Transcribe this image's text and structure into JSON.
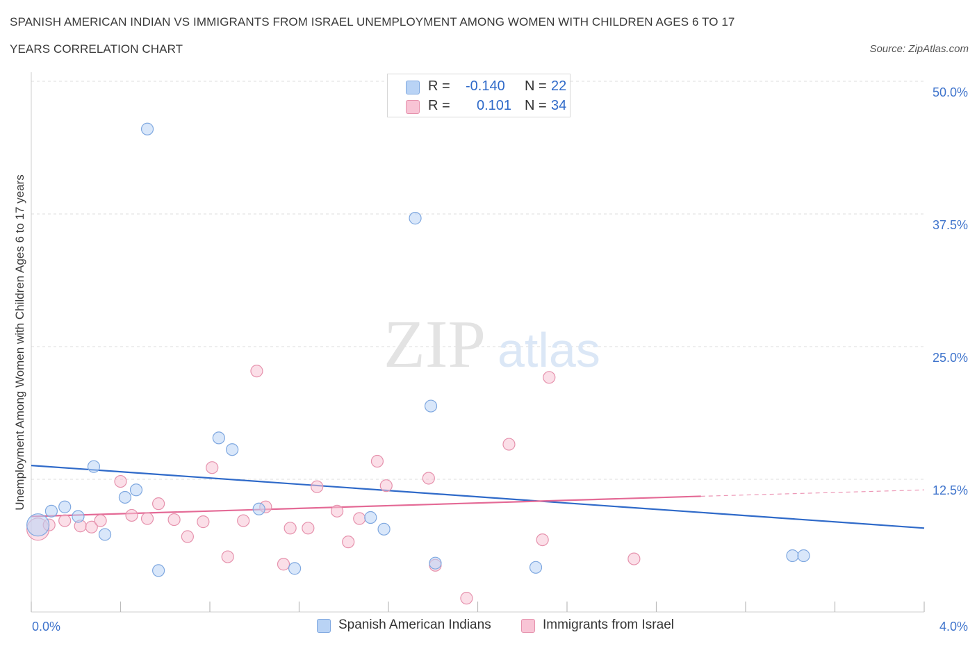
{
  "header": {
    "title_line1": "SPANISH AMERICAN INDIAN VS IMMIGRANTS FROM ISRAEL UNEMPLOYMENT AMONG WOMEN WITH CHILDREN AGES 6 TO 17",
    "title_line2": "YEARS CORRELATION CHART",
    "source": "Source: ZipAtlas.com"
  },
  "legend": {
    "series1": {
      "r_label": "R =",
      "r_value": "-0.140",
      "n_label": "N =",
      "n_value": "22"
    },
    "series2": {
      "r_label": "R =",
      "r_value": "0.101",
      "n_label": "N =",
      "n_value": "34"
    }
  },
  "colors": {
    "blue_fill": "#b9d3f5",
    "blue_stroke": "#7fa8e0",
    "blue_line": "#2f6ac9",
    "pink_fill": "#f8c4d5",
    "pink_stroke": "#e692ad",
    "pink_line": "#e46a96",
    "axis_text": "#3f74cc",
    "grid": "#dcdcdc"
  },
  "watermark": {
    "zip": "ZIP",
    "atlas": "atlas"
  },
  "chart_data": {
    "type": "scatter",
    "title": "Spanish American Indian vs Immigrants from Israel Unemployment among Women with Children Ages 6 to 17 years Correlation Chart",
    "xlabel": "",
    "ylabel": "Unemployment Among Women with Children Ages 6 to 17 years",
    "xlim": [
      0,
      4
    ],
    "ylim": [
      0,
      50
    ],
    "x_tick_labels": [
      "0.0%",
      "4.0%"
    ],
    "y_ticks": [
      12.5,
      25.0,
      37.5,
      50.0
    ],
    "y_tick_labels": [
      "12.5%",
      "25.0%",
      "37.5%",
      "50.0%"
    ],
    "grid": true,
    "legend_position": "bottom",
    "series": [
      {
        "name": "Spanish American Indians",
        "color": "#b9d3f5",
        "points": [
          {
            "x": 0.03,
            "y": 8.2,
            "size": "large"
          },
          {
            "x": 0.09,
            "y": 9.5
          },
          {
            "x": 0.15,
            "y": 9.9
          },
          {
            "x": 0.21,
            "y": 9.0
          },
          {
            "x": 0.28,
            "y": 13.7
          },
          {
            "x": 0.33,
            "y": 7.3
          },
          {
            "x": 0.42,
            "y": 10.8
          },
          {
            "x": 0.47,
            "y": 11.5
          },
          {
            "x": 0.52,
            "y": 45.5
          },
          {
            "x": 0.57,
            "y": 3.9
          },
          {
            "x": 0.84,
            "y": 16.4
          },
          {
            "x": 0.9,
            "y": 15.3
          },
          {
            "x": 1.02,
            "y": 9.7
          },
          {
            "x": 1.18,
            "y": 4.1
          },
          {
            "x": 1.52,
            "y": 8.9
          },
          {
            "x": 1.58,
            "y": 7.8
          },
          {
            "x": 1.72,
            "y": 37.1
          },
          {
            "x": 1.79,
            "y": 19.4
          },
          {
            "x": 1.81,
            "y": 4.6
          },
          {
            "x": 2.26,
            "y": 4.2
          },
          {
            "x": 3.41,
            "y": 5.3
          },
          {
            "x": 3.46,
            "y": 5.3
          }
        ],
        "trend": {
          "x": [
            0,
            4
          ],
          "y": [
            13.8,
            7.9
          ]
        }
      },
      {
        "name": "Immigrants from Israel",
        "color": "#f8c4d5",
        "points": [
          {
            "x": 0.03,
            "y": 7.8,
            "size": "large"
          },
          {
            "x": 0.08,
            "y": 8.2
          },
          {
            "x": 0.15,
            "y": 8.6
          },
          {
            "x": 0.22,
            "y": 8.1
          },
          {
            "x": 0.27,
            "y": 8.0
          },
          {
            "x": 0.31,
            "y": 8.6
          },
          {
            "x": 0.4,
            "y": 12.3
          },
          {
            "x": 0.45,
            "y": 9.1
          },
          {
            "x": 0.52,
            "y": 8.8
          },
          {
            "x": 0.57,
            "y": 10.2
          },
          {
            "x": 0.64,
            "y": 8.7
          },
          {
            "x": 0.7,
            "y": 7.1
          },
          {
            "x": 0.77,
            "y": 8.5
          },
          {
            "x": 0.81,
            "y": 13.6
          },
          {
            "x": 0.88,
            "y": 5.2
          },
          {
            "x": 0.95,
            "y": 8.6
          },
          {
            "x": 1.01,
            "y": 22.7
          },
          {
            "x": 1.05,
            "y": 9.9
          },
          {
            "x": 1.13,
            "y": 4.5
          },
          {
            "x": 1.16,
            "y": 7.9
          },
          {
            "x": 1.24,
            "y": 7.9
          },
          {
            "x": 1.28,
            "y": 11.8
          },
          {
            "x": 1.37,
            "y": 9.5
          },
          {
            "x": 1.42,
            "y": 6.6
          },
          {
            "x": 1.47,
            "y": 8.8
          },
          {
            "x": 1.55,
            "y": 14.2
          },
          {
            "x": 1.59,
            "y": 11.9
          },
          {
            "x": 1.78,
            "y": 12.6
          },
          {
            "x": 1.81,
            "y": 4.4
          },
          {
            "x": 1.95,
            "y": 1.3
          },
          {
            "x": 2.14,
            "y": 15.8
          },
          {
            "x": 2.29,
            "y": 6.8
          },
          {
            "x": 2.32,
            "y": 22.1
          },
          {
            "x": 2.7,
            "y": 5.0
          }
        ],
        "trend": {
          "x": [
            0,
            3.0
          ],
          "y": [
            9.0,
            10.9
          ]
        },
        "trend_dashed": {
          "x": [
            3.0,
            4.0
          ],
          "y": [
            10.9,
            11.5
          ]
        }
      }
    ]
  }
}
